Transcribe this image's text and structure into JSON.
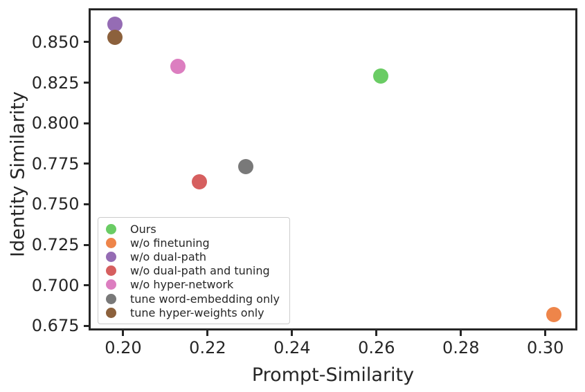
{
  "figure": {
    "background": "#ffffff",
    "text_color": "#262626",
    "spine_color": "#262626"
  },
  "chart_data": {
    "type": "scatter",
    "title": "",
    "xlabel": "Prompt-Similarity",
    "ylabel": "Identity Similarity",
    "xlim": [
      0.1923,
      0.3071
    ],
    "ylim": [
      0.6734,
      0.8696
    ],
    "xticks": [
      0.2,
      0.22,
      0.24,
      0.26,
      0.28,
      0.3
    ],
    "xtick_labels": [
      "0.20",
      "0.22",
      "0.24",
      "0.26",
      "0.28",
      "0.30"
    ],
    "yticks": [
      0.675,
      0.7,
      0.725,
      0.75,
      0.775,
      0.8,
      0.825,
      0.85
    ],
    "ytick_labels": [
      "0.675",
      "0.700",
      "0.725",
      "0.750",
      "0.775",
      "0.800",
      "0.825",
      "0.850"
    ],
    "grid": false,
    "legend_position": "lower-left",
    "marker_diameter_px": 22,
    "series": [
      {
        "name": "Ours",
        "color": "#6acc64",
        "x": 0.261,
        "y": 0.829
      },
      {
        "name": "w/o finetuning",
        "color": "#ee854a",
        "x": 0.302,
        "y": 0.682
      },
      {
        "name": "w/o dual-path",
        "color": "#956cb4",
        "x": 0.198,
        "y": 0.861
      },
      {
        "name": "w/o dual-path and tuning",
        "color": "#d65f5f",
        "x": 0.218,
        "y": 0.764
      },
      {
        "name": "w/o hyper-network",
        "color": "#dc7ec0",
        "x": 0.213,
        "y": 0.835
      },
      {
        "name": "tune word-embedding only",
        "color": "#797979",
        "x": 0.229,
        "y": 0.773
      },
      {
        "name": "tune hyper-weights only",
        "color": "#8c613c",
        "x": 0.198,
        "y": 0.853
      }
    ]
  }
}
